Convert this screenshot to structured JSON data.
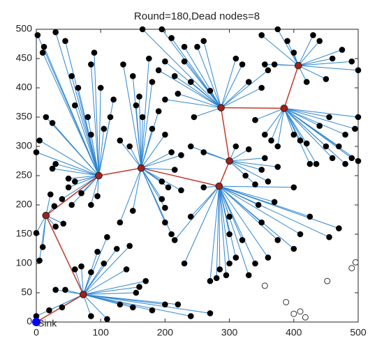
{
  "chart_data": {
    "type": "network",
    "title": "Round=180,Dead nodes=8",
    "xlim": [
      0,
      500
    ],
    "ylim": [
      0,
      500
    ],
    "xticks": [
      0,
      100,
      200,
      300,
      400,
      500
    ],
    "yticks": [
      0,
      50,
      100,
      150,
      200,
      250,
      300,
      350,
      400,
      450,
      500
    ],
    "sink": {
      "x": 0,
      "y": 0,
      "label": "Sink",
      "color": "#0000ff"
    },
    "heads": {
      "x": [
        15,
        97,
        163,
        73,
        300,
        284,
        287,
        385,
        407
      ],
      "y": [
        182,
        250,
        263,
        47,
        275,
        232,
        366,
        365,
        438
      ],
      "color": "#a0201c"
    },
    "chain": [
      8,
      7,
      6,
      4,
      5,
      2,
      1,
      0,
      3
    ],
    "chain_color": "#c0392b",
    "link_color": "#2e86d1",
    "member_color": "#000000",
    "members": [
      {
        "x": [
          0,
          10,
          5,
          30,
          42,
          28,
          22
        ],
        "y": [
          152,
          128,
          105,
          163,
          168,
          198,
          218
        ]
      },
      {
        "x": [
          2,
          10,
          12,
          30,
          45,
          55,
          65,
          85,
          90,
          60,
          80,
          85,
          105,
          115,
          120,
          100,
          25,
          15,
          5,
          0,
          30,
          25,
          50,
          60,
          50,
          70,
          40,
          55,
          85,
          95
        ],
        "y": [
          490,
          460,
          470,
          495,
          480,
          420,
          400,
          440,
          460,
          370,
          350,
          320,
          330,
          350,
          380,
          400,
          340,
          350,
          310,
          290,
          270,
          262,
          245,
          240,
          230,
          220,
          210,
          200,
          200,
          215
        ]
      },
      {
        "x": [
          135,
          150,
          175,
          180,
          160,
          155,
          165,
          190,
          180,
          130,
          145,
          200,
          210,
          225,
          215,
          195,
          205,
          195,
          200,
          225,
          200,
          150,
          130,
          210
        ],
        "y": [
          440,
          420,
          450,
          410,
          385,
          370,
          350,
          360,
          330,
          310,
          300,
          320,
          290,
          285,
          260,
          240,
          230,
          210,
          195,
          225,
          170,
          190,
          170,
          150
        ]
      },
      {
        "x": [
          0,
          20,
          40,
          30,
          60,
          70,
          85,
          95,
          105,
          110,
          125,
          145,
          140,
          160,
          170,
          155,
          130,
          150,
          180,
          200,
          220,
          240,
          270,
          110,
          85,
          45
        ],
        "y": [
          10,
          20,
          25,
          55,
          90,
          95,
          85,
          120,
          100,
          145,
          125,
          130,
          90,
          60,
          70,
          50,
          30,
          25,
          20,
          30,
          30,
          10,
          15,
          5,
          10,
          55
        ]
      },
      {
        "x": [
          240,
          260,
          310,
          330,
          355,
          350,
          325,
          340,
          360,
          375
        ],
        "y": [
          300,
          290,
          300,
          295,
          280,
          260,
          250,
          235,
          240,
          265
        ]
      },
      {
        "x": [
          270,
          280,
          285,
          295,
          300,
          310,
          320,
          330,
          340,
          360,
          375,
          400,
          410,
          425,
          455,
          470,
          350,
          300,
          300,
          345,
          370,
          400,
          230,
          215,
          240,
          260
        ],
        "y": [
          70,
          75,
          90,
          80,
          100,
          110,
          140,
          80,
          100,
          110,
          140,
          125,
          150,
          180,
          145,
          160,
          170,
          150,
          180,
          200,
          205,
          230,
          100,
          140,
          180,
          230
        ]
      },
      {
        "x": [
          165,
          195,
          210,
          230,
          250,
          230,
          200,
          190,
          215,
          240,
          220,
          200,
          245,
          270,
          310,
          320,
          330,
          350,
          360,
          260
        ],
        "y": [
          500,
          500,
          485,
          470,
          470,
          445,
          445,
          430,
          420,
          410,
          390,
          380,
          350,
          395,
          450,
          440,
          410,
          400,
          430,
          480
        ]
      },
      {
        "x": [
          340,
          355,
          365,
          375,
          400,
          410,
          420,
          425,
          435,
          450,
          460,
          470,
          480,
          490,
          500,
          495,
          480,
          440,
          455,
          500
        ],
        "y": [
          345,
          320,
          310,
          300,
          320,
          310,
          305,
          270,
          270,
          300,
          280,
          300,
          270,
          280,
          275,
          330,
          320,
          335,
          350,
          350
        ]
      },
      {
        "x": [
          350,
          375,
          390,
          400,
          430,
          440,
          460,
          475,
          490,
          500,
          420,
          450,
          370,
          355
        ],
        "y": [
          490,
          500,
          480,
          460,
          490,
          480,
          450,
          465,
          445,
          430,
          410,
          415,
          440,
          440
        ]
      }
    ],
    "dead": {
      "x": [
        355,
        388,
        400,
        410,
        418,
        452,
        490,
        496
      ],
      "y": [
        62,
        34,
        14,
        18,
        8,
        70,
        92,
        102
      ]
    }
  }
}
